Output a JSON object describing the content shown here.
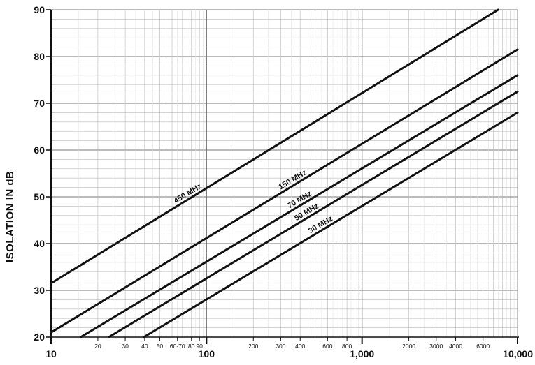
{
  "chart_data": {
    "type": "line",
    "ylabel": "ISOLATION IN dB",
    "xlabel": "",
    "x_scale": "log",
    "xlim": [
      10,
      10000
    ],
    "ylim": [
      20,
      90
    ],
    "grid": true,
    "y_ticks": [
      20,
      30,
      40,
      50,
      60,
      70,
      80,
      90
    ],
    "x_major_ticks": [
      {
        "value": 10,
        "label": "10"
      },
      {
        "value": 100,
        "label": "100"
      },
      {
        "value": 1000,
        "label": "1,000"
      },
      {
        "value": 10000,
        "label": "10,000"
      }
    ],
    "x_minor_ticks": [
      {
        "value": 20,
        "label": "20"
      },
      {
        "value": 30,
        "label": "30"
      },
      {
        "value": 40,
        "label": "40"
      },
      {
        "value": 50,
        "label": "50"
      },
      {
        "value": 65,
        "label": "60-70"
      },
      {
        "value": 80,
        "label": "80"
      },
      {
        "value": 90,
        "label": "90"
      },
      {
        "value": 200,
        "label": "200"
      },
      {
        "value": 300,
        "label": "300"
      },
      {
        "value": 400,
        "label": "400"
      },
      {
        "value": 600,
        "label": "600"
      },
      {
        "value": 800,
        "label": "800"
      },
      {
        "value": 2000,
        "label": "2000"
      },
      {
        "value": 3000,
        "label": "3000"
      },
      {
        "value": 4000,
        "label": "4000"
      },
      {
        "value": 6000,
        "label": "6000"
      }
    ],
    "series": [
      {
        "name": "450 MHz",
        "x": [
          10,
          7500
        ],
        "y": [
          31.5,
          90
        ]
      },
      {
        "name": "150 MHz",
        "x": [
          10,
          10000
        ],
        "y": [
          21,
          81.5
        ]
      },
      {
        "name": "70 MHz",
        "x": [
          15.5,
          10000
        ],
        "y": [
          20,
          76
        ]
      },
      {
        "name": "50 MHz",
        "x": [
          23.5,
          10000
        ],
        "y": [
          20,
          72.5
        ]
      },
      {
        "name": "30 MHz",
        "x": [
          39.5,
          10000
        ],
        "y": [
          20,
          68
        ]
      }
    ]
  }
}
